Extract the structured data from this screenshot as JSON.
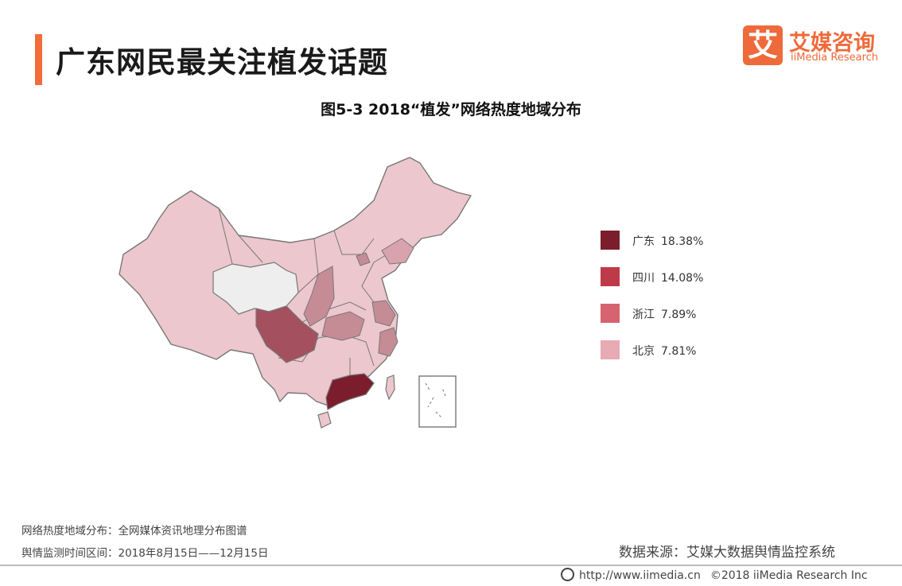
{
  "header": {
    "title": "广东网民最关注植发话题",
    "accent_color": "#f26b3a"
  },
  "logo": {
    "icon_char": "艾",
    "name_cn": "艾媒咨询",
    "name_en": "iiMedia Research",
    "color": "#ee6a3b"
  },
  "map": {
    "title": "图5-3 2018“植发”网络热度地域分布",
    "region": "China",
    "highlighted": [
      {
        "province": "广东",
        "value": 18.38,
        "color": "#7b1d2c"
      },
      {
        "province": "四川",
        "value": 14.08,
        "color": "#a4505e"
      },
      {
        "province": "浙江",
        "value": 7.89,
        "color": "#c58c95"
      },
      {
        "province": "北京",
        "value": 7.81,
        "color": "#c58c95"
      }
    ],
    "base_fill": "#ecc7cd",
    "no_data_fill": "#eeeeee",
    "legend": [
      {
        "label": "广东",
        "value": "18.38%",
        "color": "#7b1d2c"
      },
      {
        "label": "四川",
        "value": "14.08%",
        "color": "#bf3a48"
      },
      {
        "label": "浙江",
        "value": "7.89%",
        "color": "#d6636f"
      },
      {
        "label": "北京",
        "value": "7.81%",
        "color": "#e8aab3"
      }
    ]
  },
  "notes": {
    "line1": "网络热度地域分布：全网媒体资讯地理分布图谱",
    "line2": "舆情监测时间区间：2018年8月15日——12月15日"
  },
  "source": "数据来源：艾媒大数据舆情监控系统",
  "footer": {
    "url": "http://www.iimedia.cn",
    "copyright": "©2018 iiMedia Research Inc"
  }
}
